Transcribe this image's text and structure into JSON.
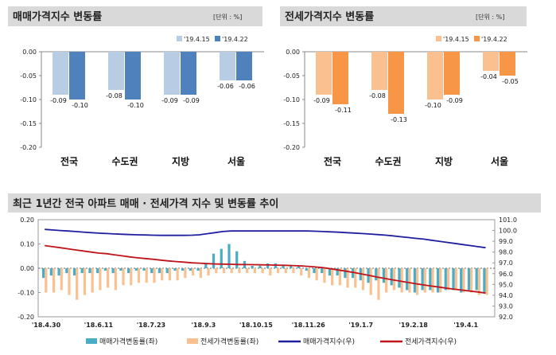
{
  "chart_data": [
    {
      "type": "bar",
      "title": "매매가격지수 변동률",
      "unit": "[단위 : %]",
      "categories": [
        "전국",
        "수도권",
        "지방",
        "서울"
      ],
      "series": [
        {
          "name": "'19.4.15",
          "values": [
            -0.09,
            -0.08,
            -0.09,
            -0.06
          ]
        },
        {
          "name": "'19.4.22",
          "values": [
            -0.1,
            -0.1,
            -0.09,
            -0.06
          ]
        }
      ],
      "ylim": [
        -0.2,
        0.0
      ],
      "yticks": [
        "0.00",
        "-0.05",
        "-0.10",
        "-0.15",
        "-0.20"
      ],
      "colors": [
        "#b8cce4",
        "#4f81bd"
      ],
      "legend_position": "top-right"
    },
    {
      "type": "bar",
      "title": "전세가격지수 변동률",
      "unit": "[단위 : %]",
      "categories": [
        "전국",
        "수도권",
        "지방",
        "서울"
      ],
      "series": [
        {
          "name": "'19.4.15",
          "values": [
            -0.09,
            -0.08,
            -0.1,
            -0.04
          ]
        },
        {
          "name": "'19.4.22",
          "values": [
            -0.11,
            -0.13,
            -0.09,
            -0.05
          ]
        }
      ],
      "ylim": [
        -0.2,
        0.0
      ],
      "yticks": [
        "0.00",
        "-0.05",
        "-0.10",
        "-0.15",
        "-0.20"
      ],
      "colors": [
        "#fbc08f",
        "#f79646"
      ],
      "legend_position": "top-right"
    },
    {
      "type": "bar",
      "title": "최근 1년간 전국 아파트 매매 · 전세가격 지수 및 변동률 추이",
      "x_ticks": [
        "'18.4.30",
        "'18.6.11",
        "'18.7.23",
        "'18.9.3",
        "'18.10.15",
        "'18.11.26",
        "'19.1.7",
        "'19.2.18",
        "'19.4.1"
      ],
      "left_ylim": [
        -0.2,
        0.2
      ],
      "left_yticks": [
        "0.20",
        "0.10",
        "0.00",
        "-0.10",
        "-0.20"
      ],
      "right_ylim": [
        92.0,
        101.0
      ],
      "right_yticks": [
        "101.0",
        "100.0",
        "99.0",
        "98.0",
        "97.0",
        "96.0",
        "95.0",
        "94.0",
        "93.0",
        "92.0"
      ],
      "series": [
        {
          "name": "매매가격변동률(좌)",
          "type": "bar",
          "color": "#4bacc6",
          "values": [
            -0.04,
            -0.03,
            -0.03,
            -0.02,
            -0.03,
            -0.02,
            -0.02,
            -0.02,
            -0.01,
            -0.02,
            -0.01,
            -0.02,
            -0.01,
            -0.01,
            -0.02,
            -0.02,
            -0.02,
            -0.01,
            -0.01,
            -0.01,
            -0.01,
            0.02,
            0.06,
            0.08,
            0.1,
            0.07,
            0.03,
            0.01,
            0.01,
            0.02,
            0.02,
            0.01,
            0.01,
            0.01,
            -0.01,
            -0.02,
            -0.02,
            -0.03,
            -0.03,
            -0.04,
            -0.04,
            -0.05,
            -0.06,
            -0.05,
            -0.06,
            -0.07,
            -0.08,
            -0.09,
            -0.1,
            -0.09,
            -0.09,
            -0.1,
            -0.09,
            -0.09,
            -0.1,
            -0.09,
            -0.09,
            -0.1
          ]
        },
        {
          "name": "전세가격변동률(좌)",
          "type": "bar",
          "color": "#fac090",
          "values": [
            -0.1,
            -0.1,
            -0.09,
            -0.11,
            -0.13,
            -0.11,
            -0.1,
            -0.09,
            -0.08,
            -0.09,
            -0.07,
            -0.07,
            -0.06,
            -0.06,
            -0.06,
            -0.05,
            -0.05,
            -0.05,
            -0.04,
            -0.03,
            -0.04,
            -0.03,
            -0.02,
            -0.02,
            -0.02,
            -0.02,
            -0.02,
            -0.02,
            -0.02,
            -0.03,
            -0.02,
            -0.02,
            -0.02,
            -0.03,
            -0.04,
            -0.05,
            -0.06,
            -0.07,
            -0.07,
            -0.08,
            -0.08,
            -0.09,
            -0.11,
            -0.13,
            -0.1,
            -0.09,
            -0.1,
            -0.1,
            -0.11,
            -0.1,
            -0.1,
            -0.1,
            -0.09,
            -0.09,
            -0.1,
            -0.1,
            -0.11,
            -0.11
          ]
        },
        {
          "name": "매매가격지수(우)",
          "type": "line",
          "color": "#1f1fa0",
          "values": [
            100.1,
            100.05,
            100.0,
            99.95,
            99.9,
            99.85,
            99.8,
            99.75,
            99.72,
            99.68,
            99.65,
            99.62,
            99.6,
            99.58,
            99.56,
            99.55,
            99.55,
            99.55,
            99.55,
            99.56,
            99.6,
            99.7,
            99.8,
            99.9,
            99.95,
            99.95,
            99.95,
            99.95,
            99.95,
            99.95,
            99.95,
            99.95,
            99.95,
            99.95,
            99.95,
            99.93,
            99.9,
            99.87,
            99.84,
            99.8,
            99.76,
            99.72,
            99.67,
            99.62,
            99.57,
            99.5,
            99.42,
            99.35,
            99.27,
            99.2,
            99.1,
            99.0,
            98.9,
            98.8,
            98.7,
            98.6,
            98.5,
            98.4
          ]
        },
        {
          "name": "전세가격지수(우)",
          "type": "line",
          "color": "#c0141b",
          "values": [
            98.6,
            98.5,
            98.4,
            98.3,
            98.2,
            98.1,
            98.0,
            97.9,
            97.85,
            97.75,
            97.65,
            97.55,
            97.47,
            97.4,
            97.33,
            97.25,
            97.18,
            97.12,
            97.07,
            97.0,
            96.97,
            96.93,
            96.9,
            96.88,
            96.87,
            96.85,
            96.84,
            96.83,
            96.82,
            96.8,
            96.79,
            96.77,
            96.75,
            96.72,
            96.68,
            96.62,
            96.55,
            96.45,
            96.33,
            96.22,
            96.1,
            95.97,
            95.83,
            95.68,
            95.55,
            95.42,
            95.3,
            95.18,
            95.06,
            94.95,
            94.85,
            94.75,
            94.65,
            94.55,
            94.47,
            94.38,
            94.3,
            94.2
          ]
        }
      ],
      "legend_position": "bottom"
    }
  ]
}
